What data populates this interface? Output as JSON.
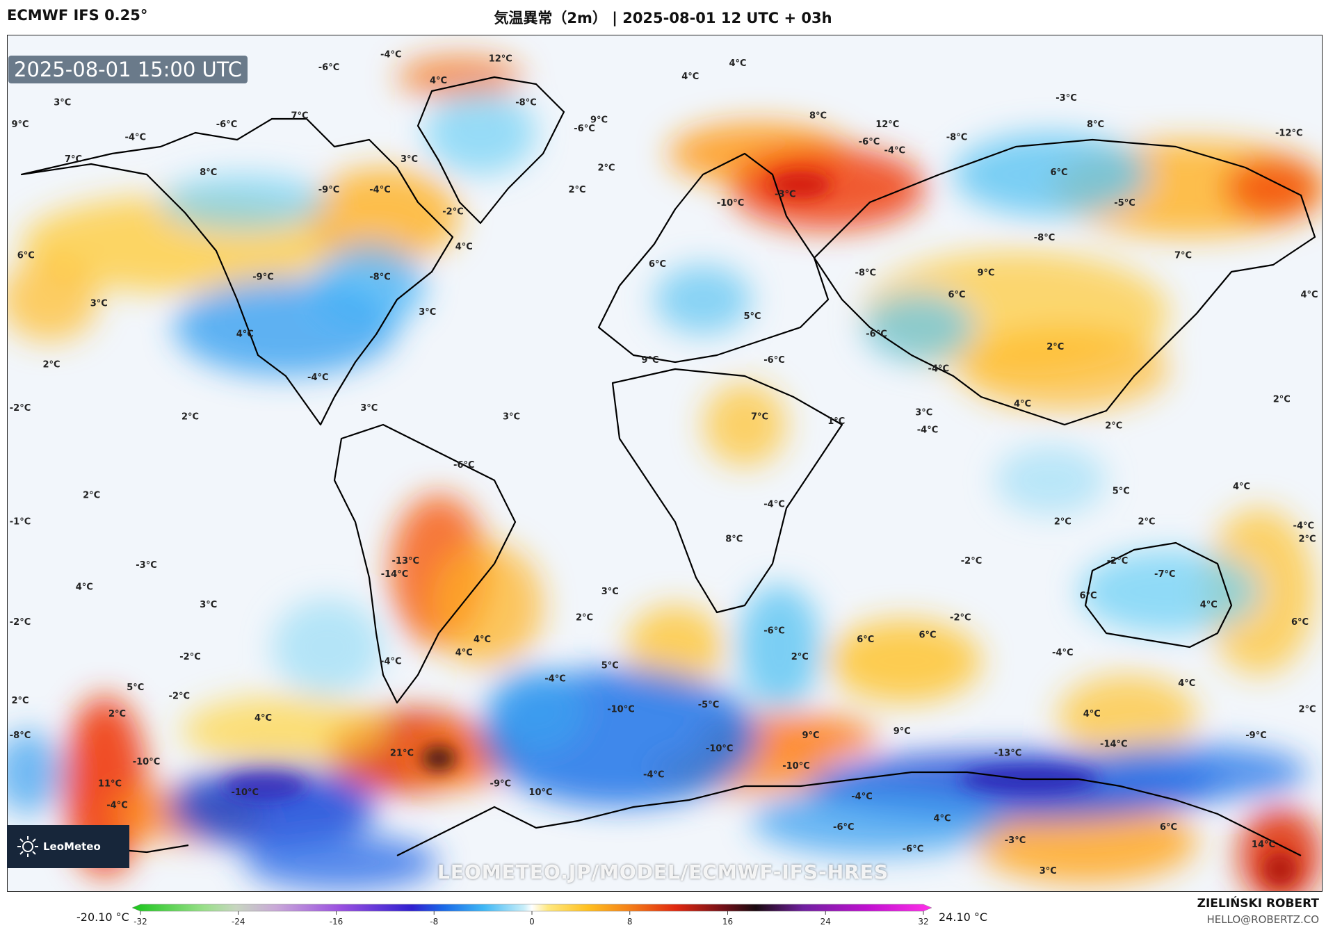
{
  "header": {
    "model": "ECMWF IFS 0.25°",
    "title": "気温異常（2m） | 2025-08-01 12 UTC + 03h"
  },
  "map": {
    "timestamp": "2025-08-01 15:00 UTC",
    "watermark": "LEOMETEO.JP/MODEL/ECMWF-IFS-HRES",
    "logo_text": "LeoMeteo",
    "labels": [
      {
        "t": "12°C",
        "lon": -45,
        "lat": 78
      },
      {
        "t": "-4°C",
        "lon": -75,
        "lat": 79
      },
      {
        "t": "-6°C",
        "lon": -92,
        "lat": 76
      },
      {
        "t": "4°C",
        "lon": -62,
        "lat": 73
      },
      {
        "t": "-8°C",
        "lon": -38,
        "lat": 68
      },
      {
        "t": "9°C",
        "lon": -18,
        "lat": 64
      },
      {
        "t": "-6°C",
        "lon": -22,
        "lat": 62
      },
      {
        "t": "4°C",
        "lon": 20,
        "lat": 77
      },
      {
        "t": "3°C",
        "lon": -165,
        "lat": 68
      },
      {
        "t": "9°C",
        "lon": -178,
        "lat": 63
      },
      {
        "t": "-6°C",
        "lon": -120,
        "lat": 63
      },
      {
        "t": "-4°C",
        "lon": -145,
        "lat": 60
      },
      {
        "t": "7°C",
        "lon": -100,
        "lat": 65
      },
      {
        "t": "7°C",
        "lon": -162,
        "lat": 55
      },
      {
        "t": "3°C",
        "lon": -70,
        "lat": 55
      },
      {
        "t": "8°C",
        "lon": -125,
        "lat": 52
      },
      {
        "t": "-9°C",
        "lon": -92,
        "lat": 48
      },
      {
        "t": "-4°C",
        "lon": -78,
        "lat": 48
      },
      {
        "t": "2°C",
        "lon": -24,
        "lat": 48
      },
      {
        "t": "-2°C",
        "lon": -58,
        "lat": 43
      },
      {
        "t": "6°C",
        "lon": -175,
        "lat": 33
      },
      {
        "t": "-9°C",
        "lon": -110,
        "lat": 28
      },
      {
        "t": "-8°C",
        "lon": -78,
        "lat": 28
      },
      {
        "t": "4°C",
        "lon": -55,
        "lat": 35
      },
      {
        "t": "3°C",
        "lon": -155,
        "lat": 22
      },
      {
        "t": "3°C",
        "lon": -65,
        "lat": 20
      },
      {
        "t": "4°C",
        "lon": -115,
        "lat": 15
      },
      {
        "t": "2°C",
        "lon": -168,
        "lat": 8
      },
      {
        "t": "-4°C",
        "lon": -95,
        "lat": 5
      },
      {
        "t": "-2°C",
        "lon": -178,
        "lat": -2
      },
      {
        "t": "2°C",
        "lon": -130,
        "lat": -4
      },
      {
        "t": "3°C",
        "lon": -81,
        "lat": -2
      },
      {
        "t": "3°C",
        "lon": -42,
        "lat": -4
      },
      {
        "t": "-6°C",
        "lon": -55,
        "lat": -15
      },
      {
        "t": "2°C",
        "lon": -157,
        "lat": -22
      },
      {
        "t": "-1°C",
        "lon": -178,
        "lat": -28
      },
      {
        "t": "-3°C",
        "lon": -142,
        "lat": -38
      },
      {
        "t": "-13°C",
        "lon": -71,
        "lat": -37
      },
      {
        "t": "-14°C",
        "lon": -74,
        "lat": -40
      },
      {
        "t": "4°C",
        "lon": -159,
        "lat": -43
      },
      {
        "t": "3°C",
        "lon": -125,
        "lat": -47
      },
      {
        "t": "-2°C",
        "lon": -178,
        "lat": -51
      },
      {
        "t": "-2°C",
        "lon": -130,
        "lat": -59
      },
      {
        "t": "-4°C",
        "lon": -75,
        "lat": -60
      },
      {
        "t": "4°C",
        "lon": -55,
        "lat": -58
      },
      {
        "t": "5°C",
        "lon": -145,
        "lat": -66
      },
      {
        "t": "-2°C",
        "lon": -133,
        "lat": -68
      },
      {
        "t": "2°C",
        "lon": -178,
        "lat": -69
      },
      {
        "t": "2°C",
        "lon": -150,
        "lat": -72
      },
      {
        "t": "4°C",
        "lon": -110,
        "lat": -73
      },
      {
        "t": "-8°C",
        "lon": -178,
        "lat": -77
      },
      {
        "t": "-10°C",
        "lon": -142,
        "lat": -83
      },
      {
        "t": "21°C",
        "lon": -72,
        "lat": -81
      },
      {
        "t": "11°C",
        "lon": -152,
        "lat": -88
      },
      {
        "t": "-10°C",
        "lon": -115,
        "lat": -90
      },
      {
        "t": "-4°C",
        "lon": -150,
        "lat": -93
      },
      {
        "t": "-9°C",
        "lon": -45,
        "lat": -88
      },
      {
        "t": "10°C",
        "lon": -34,
        "lat": -90
      },
      {
        "t": "-4°C",
        "lon": -30,
        "lat": -64
      },
      {
        "t": "-10°C",
        "lon": -12,
        "lat": -71
      },
      {
        "t": "-5°C",
        "lon": 12,
        "lat": -70
      },
      {
        "t": "5°C",
        "lon": -15,
        "lat": -61
      },
      {
        "t": "3°C",
        "lon": -15,
        "lat": -44
      },
      {
        "t": "2°C",
        "lon": -22,
        "lat": -50
      },
      {
        "t": "-10°C",
        "lon": 15,
        "lat": -80
      },
      {
        "t": "-4°C",
        "lon": -3,
        "lat": -86
      },
      {
        "t": "4°C",
        "lon": -50,
        "lat": -55
      },
      {
        "t": "4°C",
        "lon": 7,
        "lat": 74
      },
      {
        "t": "2°C",
        "lon": -16,
        "lat": 53
      },
      {
        "t": "8°C",
        "lon": 42,
        "lat": 65
      },
      {
        "t": "12°C",
        "lon": 61,
        "lat": 63
      },
      {
        "t": "-10°C",
        "lon": 18,
        "lat": 45
      },
      {
        "t": "-3°C",
        "lon": 33,
        "lat": 47
      },
      {
        "t": "6°C",
        "lon": -2,
        "lat": 31
      },
      {
        "t": "5°C",
        "lon": 24,
        "lat": 19
      },
      {
        "t": "9°C",
        "lon": -4,
        "lat": 9
      },
      {
        "t": "-6°C",
        "lon": 30,
        "lat": 9
      },
      {
        "t": "-6°C",
        "lon": 58,
        "lat": 15
      },
      {
        "t": "-4°C",
        "lon": 75,
        "lat": 7
      },
      {
        "t": "7°C",
        "lon": 26,
        "lat": -4
      },
      {
        "t": "1°C",
        "lon": 47,
        "lat": -5
      },
      {
        "t": "-4°C",
        "lon": 30,
        "lat": -24
      },
      {
        "t": "8°C",
        "lon": 19,
        "lat": -32
      },
      {
        "t": "-6°C",
        "lon": 30,
        "lat": -53
      },
      {
        "t": "6°C",
        "lon": 55,
        "lat": -55
      },
      {
        "t": "2°C",
        "lon": 37,
        "lat": -59
      },
      {
        "t": "9°C",
        "lon": 40,
        "lat": -77
      },
      {
        "t": "9°C",
        "lon": 65,
        "lat": -76
      },
      {
        "t": "-10°C",
        "lon": 36,
        "lat": -84
      },
      {
        "t": "-4°C",
        "lon": 54,
        "lat": -91
      },
      {
        "t": "-6°C",
        "lon": 49,
        "lat": -98
      },
      {
        "t": "-6°C",
        "lon": 68,
        "lat": -103
      },
      {
        "t": "4°C",
        "lon": 76,
        "lat": -96
      },
      {
        "t": "-3°C",
        "lon": 96,
        "lat": -101
      },
      {
        "t": "3°C",
        "lon": 105,
        "lat": -108
      },
      {
        "t": "6°C",
        "lon": 138,
        "lat": -98
      },
      {
        "t": "-3°C",
        "lon": 110,
        "lat": 69
      },
      {
        "t": "8°C",
        "lon": 118,
        "lat": 63
      },
      {
        "t": "-12°C",
        "lon": 171,
        "lat": 61
      },
      {
        "t": "-8°C",
        "lon": 80,
        "lat": 60
      },
      {
        "t": "-6°C",
        "lon": 56,
        "lat": 59
      },
      {
        "t": "-4°C",
        "lon": 63,
        "lat": 57
      },
      {
        "t": "6°C",
        "lon": 108,
        "lat": 52
      },
      {
        "t": "-5°C",
        "lon": 126,
        "lat": 45
      },
      {
        "t": "-8°C",
        "lon": 104,
        "lat": 37
      },
      {
        "t": "7°C",
        "lon": 142,
        "lat": 33
      },
      {
        "t": "-8°C",
        "lon": 55,
        "lat": 29
      },
      {
        "t": "9°C",
        "lon": 88,
        "lat": 29
      },
      {
        "t": "6°C",
        "lon": 80,
        "lat": 24
      },
      {
        "t": "4°C",
        "lon": 177,
        "lat": 24
      },
      {
        "t": "2°C",
        "lon": 107,
        "lat": 12
      },
      {
        "t": "4°C",
        "lon": 98,
        "lat": -1
      },
      {
        "t": "3°C",
        "lon": 71,
        "lat": -3
      },
      {
        "t": "-4°C",
        "lon": 72,
        "lat": -7
      },
      {
        "t": "2°C",
        "lon": 169,
        "lat": 0
      },
      {
        "t": "2°C",
        "lon": 123,
        "lat": -6
      },
      {
        "t": "5°C",
        "lon": 125,
        "lat": -21
      },
      {
        "t": "4°C",
        "lon": 158,
        "lat": -20
      },
      {
        "t": "2°C",
        "lon": 132,
        "lat": -28
      },
      {
        "t": "2°C",
        "lon": 109,
        "lat": -28
      },
      {
        "t": "-4°C",
        "lon": 175,
        "lat": -29
      },
      {
        "t": "2°C",
        "lon": 176,
        "lat": -32
      },
      {
        "t": "-2°C",
        "lon": 84,
        "lat": -37
      },
      {
        "t": "-2°C",
        "lon": 124,
        "lat": -37
      },
      {
        "t": "-7°C",
        "lon": 137,
        "lat": -40
      },
      {
        "t": "6°C",
        "lon": 116,
        "lat": -45
      },
      {
        "t": "4°C",
        "lon": 149,
        "lat": -47
      },
      {
        "t": "-2°C",
        "lon": 81,
        "lat": -50
      },
      {
        "t": "6°C",
        "lon": 174,
        "lat": -51
      },
      {
        "t": "6°C",
        "lon": 72,
        "lat": -54
      },
      {
        "t": "-4°C",
        "lon": 109,
        "lat": -58
      },
      {
        "t": "4°C",
        "lon": 143,
        "lat": -65
      },
      {
        "t": "2°C",
        "lon": 176,
        "lat": -71
      },
      {
        "t": "4°C",
        "lon": 117,
        "lat": -72
      },
      {
        "t": "-13°C",
        "lon": 94,
        "lat": -81
      },
      {
        "t": "-14°C",
        "lon": 123,
        "lat": -79
      },
      {
        "t": "-9°C",
        "lon": 162,
        "lat": -77
      },
      {
        "t": "14°C",
        "lon": 164,
        "lat": -102
      }
    ]
  },
  "colorbar": {
    "min_label": "-20.10 °C",
    "max_label": "24.10 °C",
    "ticks": [
      "-32",
      "-24",
      "-16",
      "-8",
      "0",
      "8",
      "16",
      "24",
      "32"
    ]
  },
  "credit": {
    "author": "ZIELIŃSKI ROBERT",
    "email": "HELLO@ROBERTZ.CO"
  }
}
